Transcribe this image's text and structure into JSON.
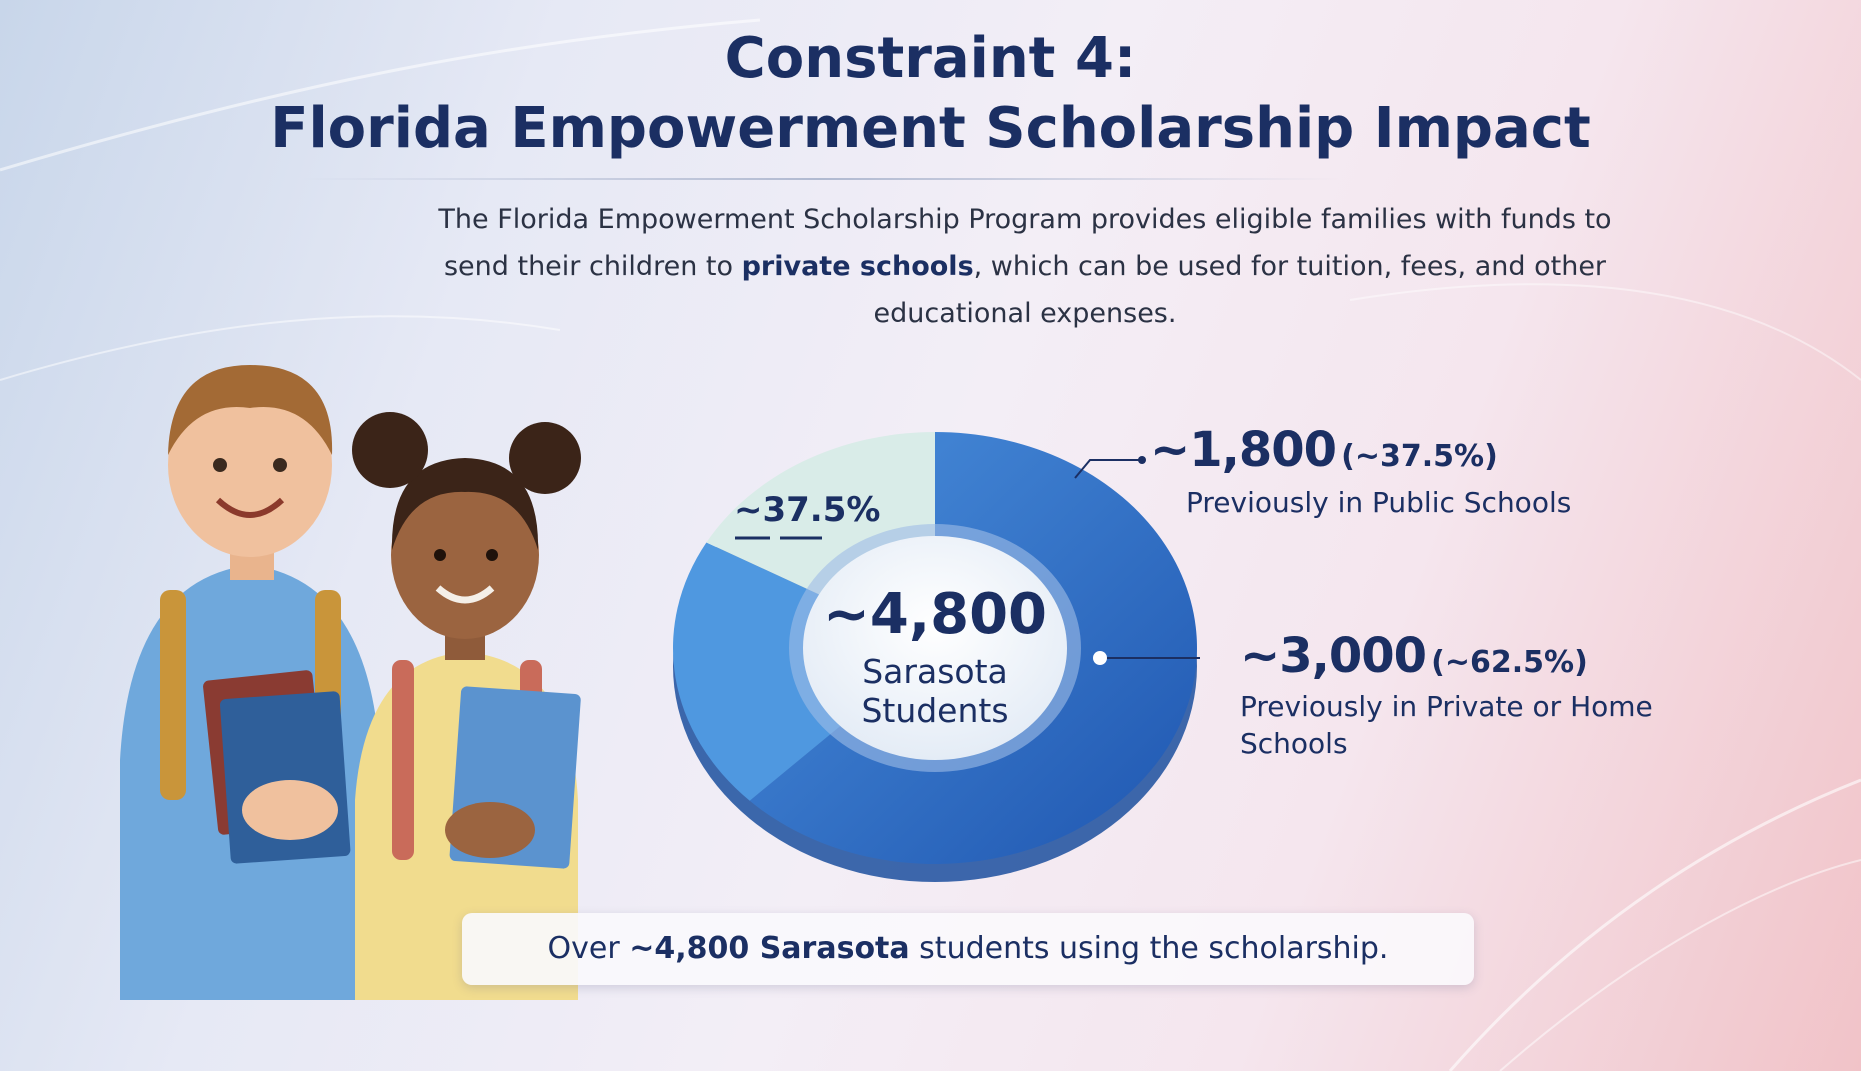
{
  "title_line1": "Constraint 4:",
  "title_line2": "Florida Empowerment Scholarship Impact",
  "description": {
    "pre": "The Florida Empowerment Scholarship Program provides eligible families with funds to send their children to ",
    "bold": "private schools",
    "post": ", which can be used for tuition, fees, and other educational expenses."
  },
  "chart_data": {
    "type": "pie",
    "center_value": "~4,800",
    "center_label": "Sarasota Students",
    "slice_label": "~37.5%",
    "segments": [
      {
        "name": "Previously in Public Schools",
        "value": 1800,
        "value_label": "~1,800",
        "percent_label": "(~37.5%)",
        "percent": 37.5,
        "color": "#3f86d6"
      },
      {
        "name": "Previously in Private or Home Schools",
        "value": 3000,
        "value_label": "~3,000",
        "percent_label": "(~62.5%)",
        "percent": 62.5,
        "color": "#2f6dc6"
      }
    ]
  },
  "banner": {
    "pre": "Over ",
    "bold": "~4,800 Sarasota",
    "post": " students using the scholarship."
  },
  "colors": {
    "title": "#1b2f63",
    "pie_dark": "#2f6dc6",
    "pie_mid": "#4f98e0",
    "pie_light": "#d9ece8"
  },
  "icons": [
    "students-illustration"
  ]
}
